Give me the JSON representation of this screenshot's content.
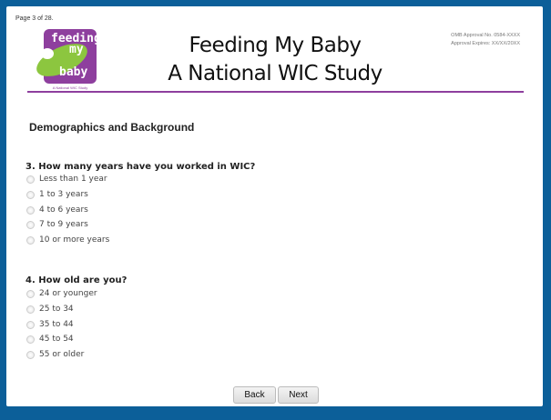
{
  "page_indicator": "Page 3 of 28.",
  "logo": {
    "line1": "feeding",
    "line2": "my",
    "line3": "baby",
    "subtitle": "A National WIC Study"
  },
  "header": {
    "title_line1": "Feeding My Baby",
    "title_line2": "A National WIC Study",
    "omb": "OMB Approval No. 0584-XXXX",
    "expires": "Approval Expires: XX/XX/20XX"
  },
  "section_title": "Demographics and Background",
  "questions": [
    {
      "label": "3. How many years have you worked in WIC?",
      "options": [
        "Less than 1 year",
        "1 to 3 years",
        "4 to 6 years",
        "7 to 9 years",
        "10 or more years"
      ]
    },
    {
      "label": "4. How old are you?",
      "options": [
        "24 or younger",
        "25 to 34",
        "35 to 44",
        "45 to 54",
        "55 or older"
      ]
    }
  ],
  "nav": {
    "back": "Back",
    "next": "Next"
  },
  "colors": {
    "background": "#0c5f99",
    "accent": "#8e3f9e",
    "logo_green": "#8cc63f"
  }
}
